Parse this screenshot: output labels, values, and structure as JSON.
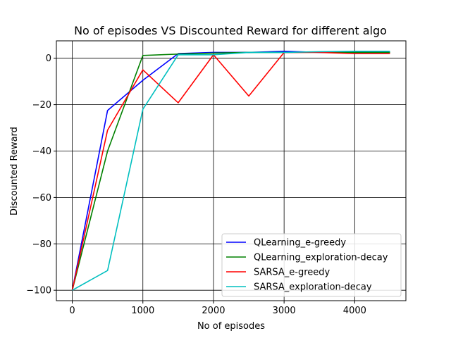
{
  "chart_data": {
    "type": "line",
    "title": "No of episodes VS Discounted Reward for different algo",
    "xlabel": "No of episodes",
    "ylabel": "Discounted Reward",
    "xlim": [
      -225,
      4725
    ],
    "ylim": [
      -104.5,
      7.5
    ],
    "xticks": [
      0,
      1000,
      2000,
      3000,
      4000
    ],
    "yticks": [
      -100,
      -80,
      -60,
      -40,
      -20,
      0
    ],
    "grid": true,
    "legend_position": "lower-right",
    "x": [
      0,
      500,
      1000,
      1500,
      2000,
      2500,
      3000,
      3500,
      4000,
      4500
    ],
    "series": [
      {
        "name": "QLearning_e-greedy",
        "color": "#0000ff",
        "values": [
          -100,
          -22.5,
          -9.5,
          2,
          2.5,
          2.5,
          3,
          2.5,
          2.5,
          2.5
        ]
      },
      {
        "name": "QLearning_exploration-decay",
        "color": "#008000",
        "values": [
          -100,
          -40,
          1.2,
          1.8,
          2.2,
          2.5,
          2.5,
          2.6,
          2.5,
          2.5
        ]
      },
      {
        "name": "SARSA_e-greedy",
        "color": "#ff0000",
        "values": [
          -100,
          -31,
          -5,
          -19.2,
          1.5,
          -16.3,
          2.5,
          2.5,
          2,
          2
        ]
      },
      {
        "name": "SARSA_exploration-decay",
        "color": "#00bfbf",
        "values": [
          -100,
          -91.5,
          -22,
          1.5,
          1.5,
          2.5,
          2.5,
          2.8,
          3,
          3
        ]
      }
    ]
  }
}
